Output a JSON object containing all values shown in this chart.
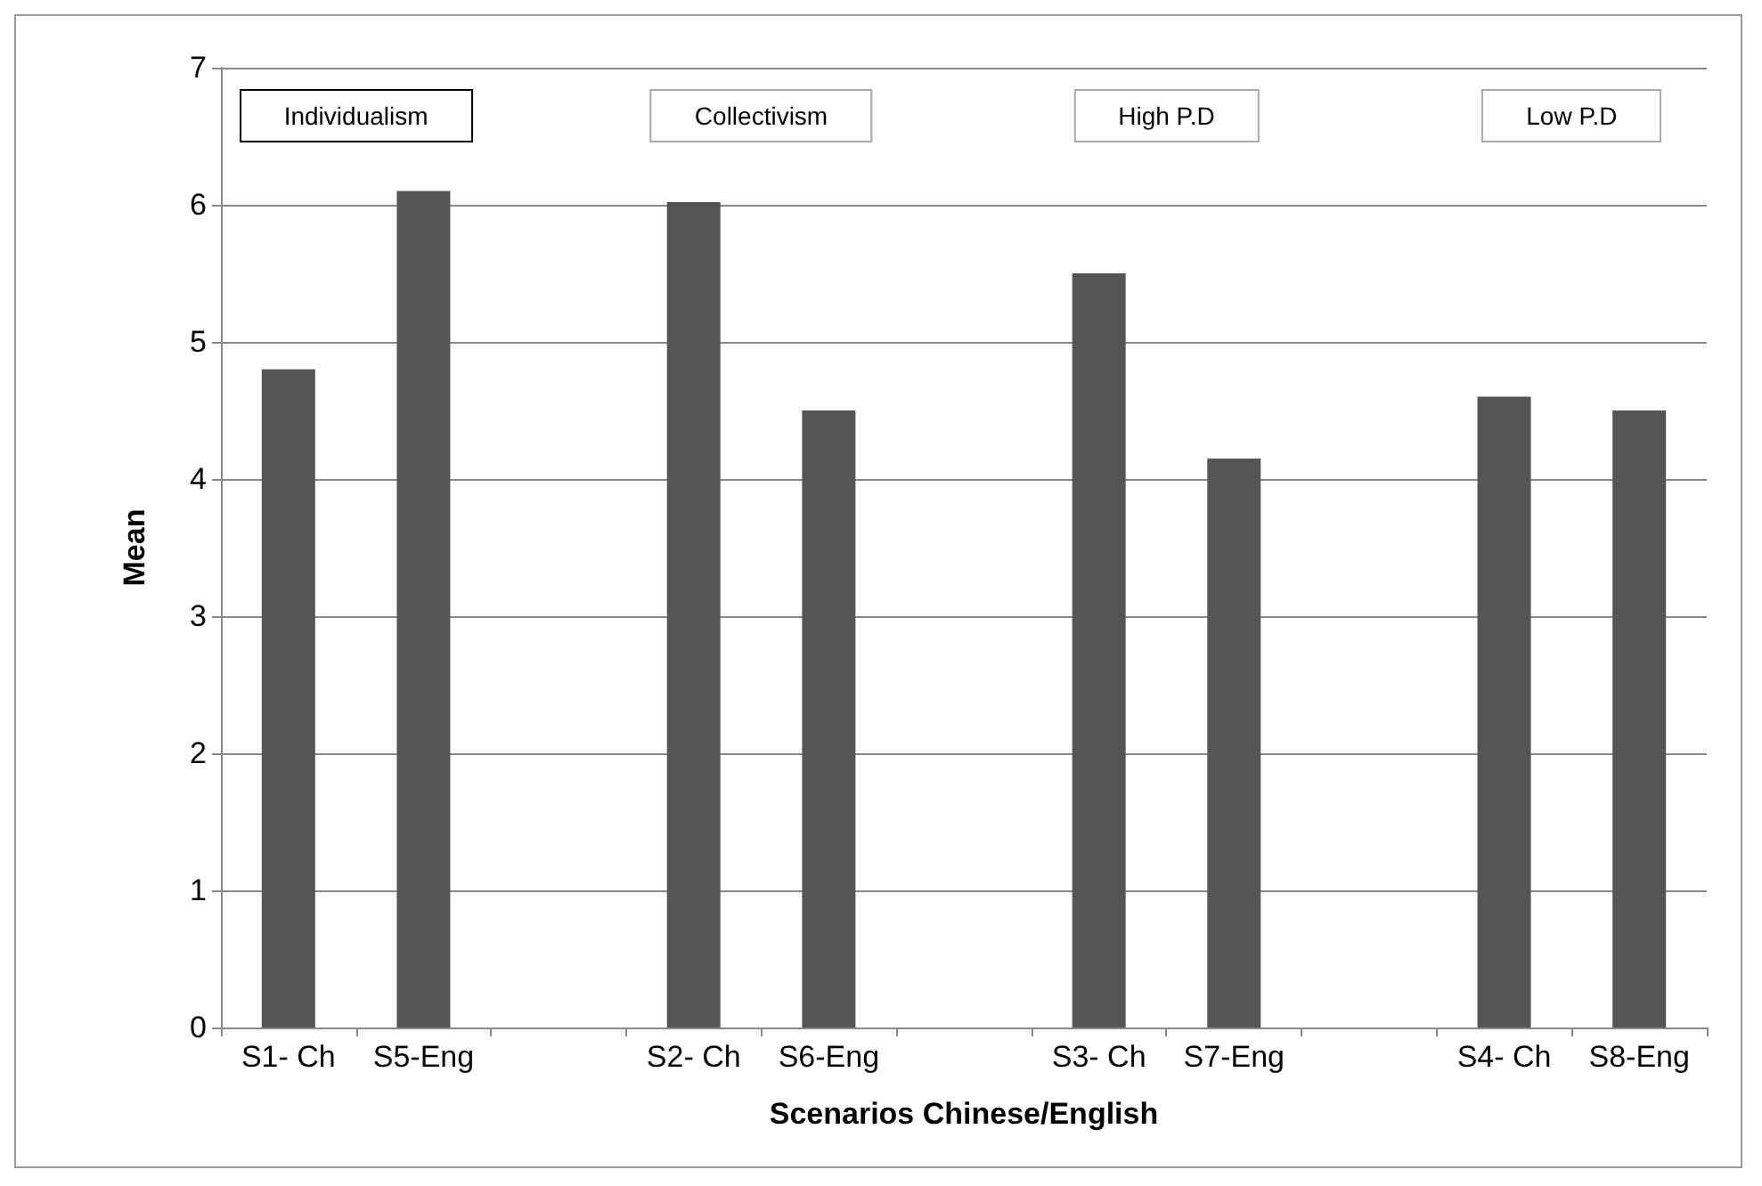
{
  "chart_data": {
    "type": "bar",
    "xlabel": "Scenarios Chinese/English",
    "ylabel": "Mean",
    "categories": [
      "S1- Ch",
      "S5-Eng",
      null,
      "S2- Ch",
      "S6-Eng",
      null,
      "S3- Ch",
      "S7-Eng",
      null,
      "S4- Ch",
      "S8-Eng"
    ],
    "values": [
      4.8,
      6.1,
      null,
      6.02,
      4.5,
      null,
      5.5,
      4.15,
      null,
      4.6,
      4.5
    ],
    "color": "#555555",
    "ylim": [
      0,
      7
    ],
    "yticks": [
      0,
      1,
      2,
      3,
      4,
      5,
      6,
      7
    ],
    "grid": "y",
    "annotations": [
      "Individualism",
      "Collectivism",
      "High P.D",
      "Low P.D"
    ]
  }
}
